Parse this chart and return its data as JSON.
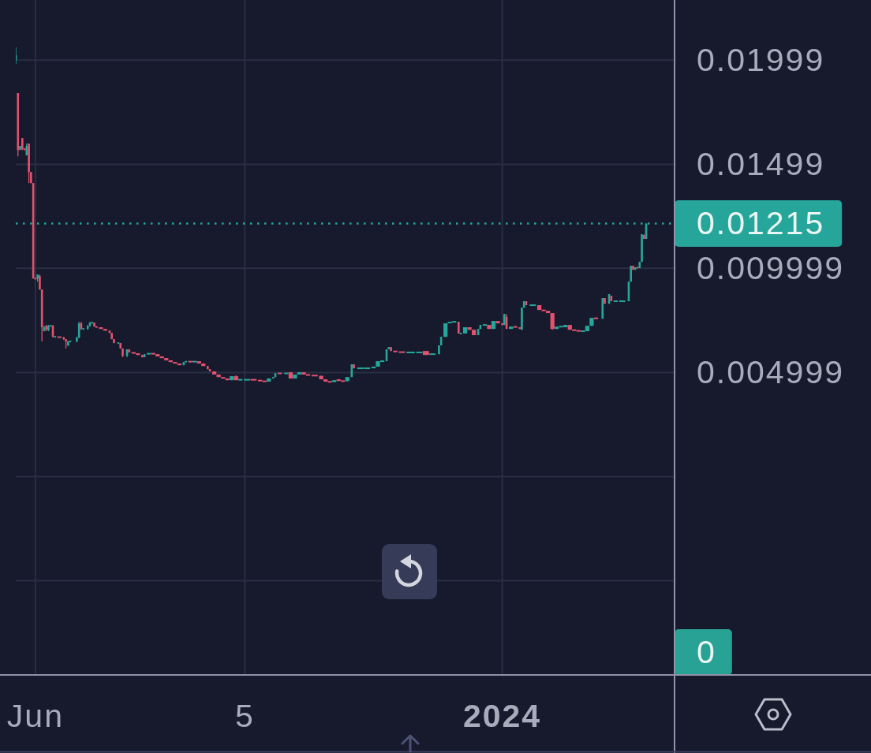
{
  "chart_data": {
    "type": "candlestick",
    "xlim": [
      "2023-05-23",
      "2024-03-20"
    ],
    "ylim": [
      -0.00952,
      0.02288
    ],
    "xticks": [
      {
        "value": "2023-06-01",
        "label": "Jun"
      },
      {
        "value": "2023-09-05",
        "label": "5"
      },
      {
        "value": "2024-01-01",
        "label": "2024"
      }
    ],
    "yticks": [
      0.01999,
      0.01499,
      0.009999,
      0.004999,
      {
        "value": 0,
        "label": null
      },
      {
        "value": -0.005,
        "label": null
      }
    ],
    "grid": true,
    "x": [
      "2023-05-23",
      "2023-05-24",
      "2023-05-25",
      "2023-05-26",
      "2023-05-27",
      "2023-05-28",
      "2023-05-29",
      "2023-05-30",
      "2023-05-31",
      "2023-06-01",
      "2023-06-02",
      "2023-06-03",
      "2023-06-04",
      "2023-06-05",
      "2023-06-06",
      "2023-06-07",
      "2023-06-08",
      "2023-06-09",
      "2023-06-10",
      "2023-06-12",
      "2023-06-14",
      "2023-06-15",
      "2023-06-16",
      "2023-06-17",
      "2023-06-20",
      "2023-06-21",
      "2023-06-22",
      "2023-06-23",
      "2023-06-25",
      "2023-06-26",
      "2023-06-27",
      "2023-06-28",
      "2023-06-29",
      "2023-07-01",
      "2023-07-03",
      "2023-07-05",
      "2023-07-06",
      "2023-07-07",
      "2023-07-09",
      "2023-07-10",
      "2023-07-11",
      "2023-07-13",
      "2023-07-14",
      "2023-07-16",
      "2023-07-18",
      "2023-07-20",
      "2023-07-21",
      "2023-07-23",
      "2023-07-25",
      "2023-07-27",
      "2023-07-29",
      "2023-07-31",
      "2023-08-02",
      "2023-08-04",
      "2023-08-06",
      "2023-08-08",
      "2023-08-09",
      "2023-08-11",
      "2023-08-13",
      "2023-08-15",
      "2023-08-17",
      "2023-08-19",
      "2023-08-20",
      "2023-08-22",
      "2023-08-24",
      "2023-08-26",
      "2023-08-28",
      "2023-08-30",
      "2023-09-01",
      "2023-09-03",
      "2023-09-06",
      "2023-09-09",
      "2023-09-12",
      "2023-09-14",
      "2023-09-16",
      "2023-09-18",
      "2023-09-19",
      "2023-09-21",
      "2023-09-24",
      "2023-09-26",
      "2023-09-28",
      "2023-09-30",
      "2023-10-02",
      "2023-10-04",
      "2023-10-07",
      "2023-10-10",
      "2023-10-12",
      "2023-10-14",
      "2023-10-16",
      "2023-10-18",
      "2023-10-20",
      "2023-10-22",
      "2023-10-24",
      "2023-10-25",
      "2023-10-28",
      "2023-10-31",
      "2023-11-03",
      "2023-11-05",
      "2023-11-07",
      "2023-11-09",
      "2023-11-10",
      "2023-11-11",
      "2023-11-13",
      "2023-11-16",
      "2023-11-20",
      "2023-11-24",
      "2023-11-27",
      "2023-11-30",
      "2023-12-03",
      "2023-12-04",
      "2023-12-06",
      "2023-12-08",
      "2023-12-10",
      "2023-12-12",
      "2023-12-13",
      "2023-12-15",
      "2023-12-17",
      "2023-12-19",
      "2023-12-21",
      "2023-12-22",
      "2023-12-24",
      "2023-12-26",
      "2023-12-28",
      "2023-12-30",
      "2024-01-01",
      "2024-01-02",
      "2024-01-03",
      "2024-01-05",
      "2024-01-07",
      "2024-01-09",
      "2024-01-10",
      "2024-01-11",
      "2024-01-12",
      "2024-01-15",
      "2024-01-18",
      "2024-01-20",
      "2024-01-22",
      "2024-01-24",
      "2024-01-26",
      "2024-01-28",
      "2024-01-30",
      "2024-02-01",
      "2024-02-03",
      "2024-02-05",
      "2024-02-07",
      "2024-02-09",
      "2024-02-11",
      "2024-02-13",
      "2024-02-16",
      "2024-02-17",
      "2024-02-19",
      "2024-02-20",
      "2024-02-22",
      "2024-02-25",
      "2024-02-28",
      "2024-02-29",
      "2024-03-01",
      "2024-03-02",
      "2024-03-03",
      "2024-03-04",
      "2024-03-05",
      "2024-03-06",
      "2024-03-07"
    ],
    "ohlc": [
      [
        0.02,
        0.02061,
        0.0198,
        0.02023
      ],
      [
        0.01841,
        0.01841,
        0.01538,
        0.01568
      ],
      [
        0.01568,
        0.01587,
        0.01568,
        0.01587
      ],
      [
        0.01625,
        0.01625,
        0.01568,
        0.01572
      ],
      [
        0.01572,
        0.01576,
        0.01568,
        0.0157
      ],
      [
        0.01542,
        0.01599,
        0.01542,
        0.01587
      ],
      [
        0.01599,
        0.01599,
        0.01409,
        0.01462
      ],
      [
        0.01462,
        0.01462,
        0.01409,
        0.01409
      ],
      [
        0.01409,
        0.01409,
        0.00951,
        0.00951
      ],
      [
        0.00951,
        0.00955,
        0.00947,
        0.0095
      ],
      [
        0.00951,
        0.0097,
        0.00936,
        0.0097
      ],
      [
        0.00963,
        0.0097,
        0.00898,
        0.00898
      ],
      [
        0.00898,
        0.00898,
        0.00649,
        0.00717
      ],
      [
        0.00698,
        0.00724,
        0.00698,
        0.00717
      ],
      [
        0.00724,
        0.00728,
        0.00698,
        0.00705
      ],
      [
        0.00705,
        0.00728,
        0.00698,
        0.00724
      ],
      [
        0.00724,
        0.00724,
        0.00724,
        0.00724
      ],
      [
        0.00724,
        0.00728,
        0.00668,
        0.00671
      ],
      [
        0.00671,
        0.00671,
        0.00671,
        0.00671
      ],
      [
        0.00671,
        0.00671,
        0.00668,
        0.00668
      ],
      [
        0.00668,
        0.00671,
        0.00656,
        0.0066
      ],
      [
        0.0066,
        0.0066,
        0.00615,
        0.00649
      ],
      [
        0.0063,
        0.00652,
        0.00626,
        0.00649
      ],
      [
        0.00649,
        0.00652,
        0.00645,
        0.00649
      ],
      [
        0.00649,
        0.00671,
        0.00645,
        0.00668
      ],
      [
        0.00668,
        0.00743,
        0.00664,
        0.00736
      ],
      [
        0.00736,
        0.00743,
        0.00705,
        0.00709
      ],
      [
        0.00709,
        0.00709,
        0.00709,
        0.00709
      ],
      [
        0.00709,
        0.00728,
        0.00705,
        0.00724
      ],
      [
        0.00724,
        0.00743,
        0.0072,
        0.00739
      ],
      [
        0.00739,
        0.00739,
        0.00739,
        0.00739
      ],
      [
        0.00739,
        0.00739,
        0.0072,
        0.0072
      ],
      [
        0.0072,
        0.0072,
        0.00717,
        0.00717
      ],
      [
        0.00717,
        0.00717,
        0.00709,
        0.00709
      ],
      [
        0.00709,
        0.00709,
        0.00701,
        0.00701
      ],
      [
        0.00701,
        0.00701,
        0.0069,
        0.0069
      ],
      [
        0.0069,
        0.0069,
        0.0066,
        0.0066
      ],
      [
        0.0066,
        0.0066,
        0.00641,
        0.00641
      ],
      [
        0.00641,
        0.00641,
        0.00641,
        0.00641
      ],
      [
        0.00641,
        0.00641,
        0.00615,
        0.00615
      ],
      [
        0.00615,
        0.00615,
        0.00573,
        0.0058
      ],
      [
        0.0058,
        0.00611,
        0.00573,
        0.00611
      ],
      [
        0.00611,
        0.00611,
        0.00596,
        0.00596
      ],
      [
        0.00596,
        0.00596,
        0.00592,
        0.00592
      ],
      [
        0.00592,
        0.00592,
        0.00584,
        0.00584
      ],
      [
        0.00584,
        0.00584,
        0.00573,
        0.00573
      ],
      [
        0.00573,
        0.00588,
        0.00573,
        0.00588
      ],
      [
        0.00588,
        0.00592,
        0.00588,
        0.00592
      ],
      [
        0.00592,
        0.00592,
        0.00588,
        0.00588
      ],
      [
        0.00588,
        0.00588,
        0.00577,
        0.00577
      ],
      [
        0.00577,
        0.00577,
        0.00569,
        0.00569
      ],
      [
        0.00569,
        0.00569,
        0.00558,
        0.00558
      ],
      [
        0.00558,
        0.00558,
        0.0055,
        0.0055
      ],
      [
        0.0055,
        0.0055,
        0.00543,
        0.00543
      ],
      [
        0.00543,
        0.00543,
        0.00535,
        0.00535
      ],
      [
        0.00535,
        0.0055,
        0.00535,
        0.0055
      ],
      [
        0.0055,
        0.00554,
        0.0055,
        0.00554
      ],
      [
        0.00554,
        0.00554,
        0.0055,
        0.0055
      ],
      [
        0.0055,
        0.00554,
        0.0055,
        0.00554
      ],
      [
        0.00554,
        0.00554,
        0.00543,
        0.00543
      ],
      [
        0.00543,
        0.00543,
        0.00531,
        0.00531
      ],
      [
        0.00531,
        0.00531,
        0.00516,
        0.00516
      ],
      [
        0.00516,
        0.00516,
        0.00505,
        0.00505
      ],
      [
        0.00505,
        0.00505,
        0.0049,
        0.0049
      ],
      [
        0.0049,
        0.0049,
        0.00478,
        0.00478
      ],
      [
        0.00478,
        0.00478,
        0.00471,
        0.00471
      ],
      [
        0.00471,
        0.00471,
        0.00463,
        0.00463
      ],
      [
        0.00463,
        0.00482,
        0.00463,
        0.00482
      ],
      [
        0.00482,
        0.00486,
        0.00463,
        0.00463
      ],
      [
        0.00463,
        0.00467,
        0.00463,
        0.00467
      ],
      [
        0.00463,
        0.00467,
        0.00463,
        0.00467
      ],
      [
        0.00467,
        0.00467,
        0.00463,
        0.00463
      ],
      [
        0.00463,
        0.00463,
        0.00459,
        0.00459
      ],
      [
        0.00459,
        0.00459,
        0.00456,
        0.00456
      ],
      [
        0.00456,
        0.00471,
        0.00456,
        0.00471
      ],
      [
        0.00471,
        0.00478,
        0.00471,
        0.00478
      ],
      [
        0.00478,
        0.00497,
        0.00478,
        0.00497
      ],
      [
        0.00497,
        0.00497,
        0.00494,
        0.00494
      ],
      [
        0.00494,
        0.00497,
        0.00494,
        0.00497
      ],
      [
        0.00501,
        0.00501,
        0.00471,
        0.00471
      ],
      [
        0.00471,
        0.0049,
        0.00471,
        0.0049
      ],
      [
        0.0049,
        0.00501,
        0.0049,
        0.00501
      ],
      [
        0.00501,
        0.00501,
        0.0049,
        0.0049
      ],
      [
        0.0049,
        0.0049,
        0.00486,
        0.00486
      ],
      [
        0.00486,
        0.00486,
        0.00484,
        0.00484
      ],
      [
        0.00484,
        0.00484,
        0.00467,
        0.00467
      ],
      [
        0.00467,
        0.00467,
        0.00456,
        0.00456
      ],
      [
        0.00456,
        0.00456,
        0.00454,
        0.00454
      ],
      [
        0.00454,
        0.00463,
        0.00454,
        0.00463
      ],
      [
        0.00467,
        0.00467,
        0.00459,
        0.00459
      ],
      [
        0.00459,
        0.00459,
        0.00458,
        0.00458
      ],
      [
        0.00458,
        0.00478,
        0.00458,
        0.00478
      ],
      [
        0.00478,
        0.00539,
        0.00478,
        0.00539
      ],
      [
        0.00539,
        0.00539,
        0.0052,
        0.0052
      ],
      [
        0.0052,
        0.0052,
        0.0052,
        0.0052
      ],
      [
        0.0052,
        0.0052,
        0.0052,
        0.0052
      ],
      [
        0.0052,
        0.00528,
        0.0052,
        0.00528
      ],
      [
        0.00528,
        0.00554,
        0.00528,
        0.00554
      ],
      [
        0.00554,
        0.00554,
        0.00554,
        0.00554
      ],
      [
        0.00554,
        0.00611,
        0.00554,
        0.00611
      ],
      [
        0.00611,
        0.00622,
        0.00611,
        0.00622
      ],
      [
        0.00622,
        0.00622,
        0.00603,
        0.00603
      ],
      [
        0.00603,
        0.00603,
        0.00599,
        0.00599
      ],
      [
        0.00599,
        0.00599,
        0.00596,
        0.00596
      ],
      [
        0.00596,
        0.00596,
        0.00596,
        0.00596
      ],
      [
        0.00596,
        0.00596,
        0.00596,
        0.00596
      ],
      [
        0.00603,
        0.00603,
        0.00584,
        0.00584
      ],
      [
        0.00588,
        0.00588,
        0.00588,
        0.00588
      ],
      [
        0.00588,
        0.0063,
        0.00588,
        0.0063
      ],
      [
        0.0063,
        0.00671,
        0.0063,
        0.00671
      ],
      [
        0.00671,
        0.00736,
        0.00671,
        0.00736
      ],
      [
        0.00736,
        0.00743,
        0.00736,
        0.00743
      ],
      [
        0.00743,
        0.00743,
        0.00743,
        0.00743
      ],
      [
        0.00743,
        0.00743,
        0.00687,
        0.00687
      ],
      [
        0.00687,
        0.00687,
        0.00687,
        0.00687
      ],
      [
        0.00687,
        0.00717,
        0.00687,
        0.00717
      ],
      [
        0.00717,
        0.00717,
        0.00705,
        0.00705
      ],
      [
        0.00705,
        0.00705,
        0.00679,
        0.00679
      ],
      [
        0.00679,
        0.00709,
        0.00679,
        0.00709
      ],
      [
        0.00709,
        0.00728,
        0.00709,
        0.00728
      ],
      [
        0.00728,
        0.00728,
        0.00728,
        0.00728
      ],
      [
        0.00728,
        0.00728,
        0.00709,
        0.00709
      ],
      [
        0.00709,
        0.00747,
        0.00709,
        0.00747
      ],
      [
        0.00747,
        0.00747,
        0.00736,
        0.00736
      ],
      [
        0.00736,
        0.00736,
        0.00728,
        0.00728
      ],
      [
        0.00728,
        0.00781,
        0.00728,
        0.00781
      ],
      [
        0.00766,
        0.00781,
        0.00709,
        0.00709
      ],
      [
        0.00709,
        0.0072,
        0.00709,
        0.0072
      ],
      [
        0.0072,
        0.0072,
        0.00717,
        0.00717
      ],
      [
        0.00717,
        0.00717,
        0.00709,
        0.00709
      ],
      [
        0.00705,
        0.00811,
        0.00705,
        0.00811
      ],
      [
        0.00811,
        0.00842,
        0.00811,
        0.00842
      ],
      [
        0.00842,
        0.00842,
        0.00823,
        0.00823
      ],
      [
        0.00823,
        0.00823,
        0.00823,
        0.00823
      ],
      [
        0.00823,
        0.00823,
        0.008,
        0.008
      ],
      [
        0.008,
        0.008,
        0.00796,
        0.00796
      ],
      [
        0.00796,
        0.00796,
        0.00785,
        0.00785
      ],
      [
        0.00785,
        0.00785,
        0.00705,
        0.00709
      ],
      [
        0.00709,
        0.0072,
        0.00709,
        0.0072
      ],
      [
        0.0072,
        0.0072,
        0.0072,
        0.0072
      ],
      [
        0.00717,
        0.00728,
        0.00717,
        0.00728
      ],
      [
        0.00728,
        0.00728,
        0.00705,
        0.00705
      ],
      [
        0.00705,
        0.00705,
        0.00701,
        0.00701
      ],
      [
        0.00701,
        0.00701,
        0.00698,
        0.00698
      ],
      [
        0.00698,
        0.00698,
        0.00698,
        0.00698
      ],
      [
        0.00698,
        0.00724,
        0.00698,
        0.00724
      ],
      [
        0.00724,
        0.00762,
        0.00724,
        0.00762
      ],
      [
        0.00762,
        0.00762,
        0.00758,
        0.00758
      ],
      [
        0.00758,
        0.00857,
        0.00758,
        0.00857
      ],
      [
        0.00857,
        0.00857,
        0.0083,
        0.0083
      ],
      [
        0.0083,
        0.00876,
        0.0083,
        0.00876
      ],
      [
        0.00868,
        0.00868,
        0.00842,
        0.00842
      ],
      [
        0.00842,
        0.00842,
        0.00842,
        0.00842
      ],
      [
        0.00842,
        0.00842,
        0.00842,
        0.00842
      ],
      [
        0.00842,
        0.00936,
        0.00842,
        0.00936
      ],
      [
        0.00936,
        0.01012,
        0.00936,
        0.01012
      ],
      [
        0.01012,
        0.01012,
        0.00993,
        0.00993
      ],
      [
        0.00993,
        0.01005,
        0.00993,
        0.01005
      ],
      [
        0.01005,
        0.01005,
        0.01001,
        0.01001
      ],
      [
        0.01001,
        0.01031,
        0.01001,
        0.01031
      ],
      [
        0.01031,
        0.01163,
        0.01031,
        0.01163
      ],
      [
        0.0116,
        0.01163,
        0.01141,
        0.01141
      ],
      [
        0.01141,
        0.01215,
        0.01141,
        0.01215
      ]
    ],
    "colors": [
      "#26a69a",
      "#e2526e",
      "#26a69a",
      "#e2526e",
      "#e2526e",
      "#26a69a",
      "#e2526e",
      "#e2526e",
      "#e2526e",
      "#e2526e",
      "#26a69a",
      "#e2526e",
      "#e2526e",
      "#26a69a",
      "#e2526e",
      "#26a69a",
      "#26a69a",
      "#e2526e",
      "#26a69a",
      "#e2526e",
      "#e2526e",
      "#e2526e",
      "#26a69a",
      "#26a69a",
      "#26a69a",
      "#26a69a",
      "#e2526e",
      "#26a69a",
      "#26a69a",
      "#26a69a",
      "#26a69a",
      "#e2526e",
      "#e2526e",
      "#e2526e",
      "#e2526e",
      "#e2526e",
      "#e2526e",
      "#e2526e",
      "#26a69a",
      "#e2526e",
      "#e2526e",
      "#26a69a",
      "#e2526e",
      "#e2526e",
      "#e2526e",
      "#e2526e",
      "#26a69a",
      "#26a69a",
      "#e2526e",
      "#e2526e",
      "#e2526e",
      "#e2526e",
      "#e2526e",
      "#e2526e",
      "#e2526e",
      "#26a69a",
      "#26a69a",
      "#e2526e",
      "#26a69a",
      "#e2526e",
      "#e2526e",
      "#e2526e",
      "#e2526e",
      "#e2526e",
      "#e2526e",
      "#e2526e",
      "#e2526e",
      "#26a69a",
      "#e2526e",
      "#26a69a",
      "#26a69a",
      "#e2526e",
      "#e2526e",
      "#e2526e",
      "#26a69a",
      "#26a69a",
      "#26a69a",
      "#e2526e",
      "#26a69a",
      "#e2526e",
      "#26a69a",
      "#26a69a",
      "#e2526e",
      "#e2526e",
      "#e2526e",
      "#e2526e",
      "#e2526e",
      "#e2526e",
      "#26a69a",
      "#e2526e",
      "#e2526e",
      "#26a69a",
      "#26a69a",
      "#e2526e",
      "#26a69a",
      "#26a69a",
      "#26a69a",
      "#26a69a",
      "#26a69a",
      "#26a69a",
      "#26a69a",
      "#e2526e",
      "#e2526e",
      "#e2526e",
      "#26a69a",
      "#26a69a",
      "#e2526e",
      "#26a69a",
      "#26a69a",
      "#26a69a",
      "#26a69a",
      "#26a69a",
      "#26a69a",
      "#e2526e",
      "#26a69a",
      "#26a69a",
      "#e2526e",
      "#e2526e",
      "#26a69a",
      "#26a69a",
      "#26a69a",
      "#e2526e",
      "#26a69a",
      "#e2526e",
      "#e2526e",
      "#26a69a",
      "#e2526e",
      "#26a69a",
      "#e2526e",
      "#e2526e",
      "#26a69a",
      "#26a69a",
      "#e2526e",
      "#26a69a",
      "#e2526e",
      "#e2526e",
      "#e2526e",
      "#e2526e",
      "#26a69a",
      "#26a69a",
      "#26a69a",
      "#e2526e",
      "#e2526e",
      "#e2526e",
      "#26a69a",
      "#26a69a",
      "#26a69a",
      "#e2526e",
      "#26a69a",
      "#e2526e",
      "#26a69a",
      "#e2526e",
      "#26a69a",
      "#26a69a",
      "#26a69a",
      "#26a69a",
      "#e2526e",
      "#26a69a",
      "#e2526e",
      "#26a69a",
      "#26a69a",
      "#e2526e",
      "#26a69a"
    ],
    "ref_lines": [
      {
        "axis": "y",
        "value": 0.01215,
        "label": "0.01215",
        "color": "#26a69a",
        "line_style": "dotted"
      }
    ],
    "annotations": [
      "0"
    ]
  }
}
